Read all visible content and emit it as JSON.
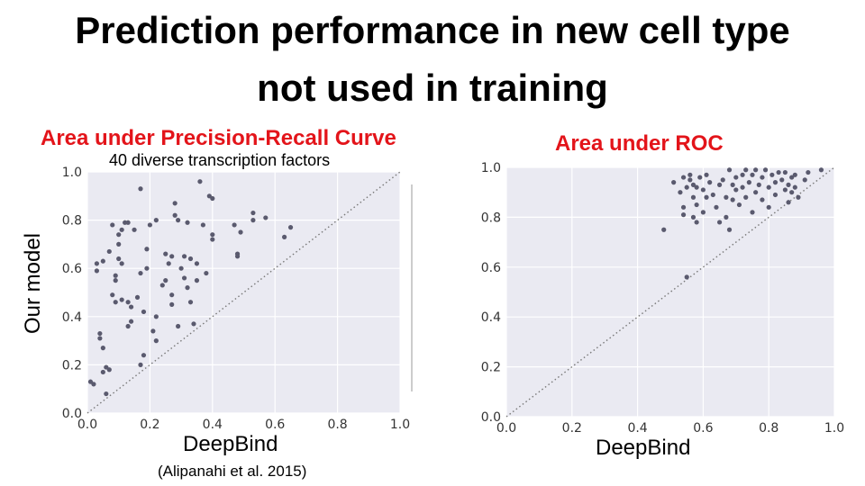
{
  "slide": {
    "title_line1": "Prediction performance in new cell type",
    "title_line2": "not used in training"
  },
  "shared": {
    "ylabel": "Our model"
  },
  "colors": {
    "accent_red": "#e3141a",
    "plot_bg": "#eaeaf2",
    "grid": "#ffffff",
    "point": "#5a5a6e"
  },
  "chart_data": [
    {
      "type": "scatter",
      "title": "Area under Precision-Recall Curve",
      "subtitle": "40 diverse transcription factors",
      "xlabel": "DeepBind",
      "citation": "(Alipanahi et al. 2015)",
      "xlim": [
        0,
        1.0
      ],
      "ylim": [
        0,
        1.0
      ],
      "xticks": [
        "0.0",
        "0.2",
        "0.4",
        "0.6",
        "0.8",
        "1.0"
      ],
      "yticks": [
        "0.0",
        "0.2",
        "0.4",
        "0.6",
        "0.8",
        "1.0"
      ],
      "grid": true,
      "diagonal": true,
      "points": [
        [
          0.01,
          0.13
        ],
        [
          0.02,
          0.12
        ],
        [
          0.03,
          0.59
        ],
        [
          0.03,
          0.62
        ],
        [
          0.04,
          0.31
        ],
        [
          0.04,
          0.33
        ],
        [
          0.05,
          0.63
        ],
        [
          0.05,
          0.27
        ],
        [
          0.05,
          0.17
        ],
        [
          0.06,
          0.19
        ],
        [
          0.06,
          0.08
        ],
        [
          0.07,
          0.67
        ],
        [
          0.07,
          0.18
        ],
        [
          0.08,
          0.49
        ],
        [
          0.08,
          0.78
        ],
        [
          0.09,
          0.57
        ],
        [
          0.09,
          0.55
        ],
        [
          0.09,
          0.46
        ],
        [
          0.1,
          0.7
        ],
        [
          0.1,
          0.64
        ],
        [
          0.1,
          0.74
        ],
        [
          0.11,
          0.62
        ],
        [
          0.11,
          0.47
        ],
        [
          0.11,
          0.76
        ],
        [
          0.12,
          0.79
        ],
        [
          0.13,
          0.36
        ],
        [
          0.13,
          0.79
        ],
        [
          0.13,
          0.46
        ],
        [
          0.14,
          0.44
        ],
        [
          0.14,
          0.38
        ],
        [
          0.15,
          0.76
        ],
        [
          0.16,
          0.48
        ],
        [
          0.17,
          0.2
        ],
        [
          0.17,
          0.93
        ],
        [
          0.17,
          0.58
        ],
        [
          0.18,
          0.24
        ],
        [
          0.18,
          0.42
        ],
        [
          0.19,
          0.68
        ],
        [
          0.19,
          0.6
        ],
        [
          0.2,
          0.78
        ],
        [
          0.21,
          0.34
        ],
        [
          0.22,
          0.8
        ],
        [
          0.22,
          0.4
        ],
        [
          0.22,
          0.3
        ],
        [
          0.24,
          0.53
        ],
        [
          0.25,
          0.55
        ],
        [
          0.25,
          0.66
        ],
        [
          0.26,
          0.62
        ],
        [
          0.27,
          0.65
        ],
        [
          0.27,
          0.49
        ],
        [
          0.27,
          0.45
        ],
        [
          0.28,
          0.87
        ],
        [
          0.28,
          0.82
        ],
        [
          0.29,
          0.36
        ],
        [
          0.29,
          0.8
        ],
        [
          0.3,
          0.6
        ],
        [
          0.31,
          0.65
        ],
        [
          0.31,
          0.56
        ],
        [
          0.32,
          0.79
        ],
        [
          0.32,
          0.52
        ],
        [
          0.33,
          0.64
        ],
        [
          0.33,
          0.46
        ],
        [
          0.34,
          0.37
        ],
        [
          0.35,
          0.55
        ],
        [
          0.35,
          0.62
        ],
        [
          0.36,
          0.96
        ],
        [
          0.37,
          0.78
        ],
        [
          0.38,
          0.58
        ],
        [
          0.39,
          0.9
        ],
        [
          0.4,
          0.72
        ],
        [
          0.4,
          0.89
        ],
        [
          0.4,
          0.74
        ],
        [
          0.47,
          0.78
        ],
        [
          0.48,
          0.65
        ],
        [
          0.48,
          0.66
        ],
        [
          0.49,
          0.75
        ],
        [
          0.53,
          0.8
        ],
        [
          0.53,
          0.83
        ],
        [
          0.57,
          0.81
        ],
        [
          0.63,
          0.73
        ],
        [
          0.65,
          0.77
        ]
      ]
    },
    {
      "type": "scatter",
      "title": "Area under ROC",
      "xlabel": "DeepBind",
      "xlim": [
        0,
        1.0
      ],
      "ylim": [
        0,
        1.0
      ],
      "xticks": [
        "0.0",
        "0.2",
        "0.4",
        "0.6",
        "0.8",
        "1.0"
      ],
      "yticks": [
        "0.0",
        "0.2",
        "0.4",
        "0.6",
        "0.8",
        "1.0"
      ],
      "grid": true,
      "diagonal": true,
      "points": [
        [
          0.48,
          0.75
        ],
        [
          0.51,
          0.94
        ],
        [
          0.53,
          0.9
        ],
        [
          0.54,
          0.96
        ],
        [
          0.54,
          0.81
        ],
        [
          0.54,
          0.84
        ],
        [
          0.55,
          0.56
        ],
        [
          0.55,
          0.92
        ],
        [
          0.56,
          0.95
        ],
        [
          0.56,
          0.97
        ],
        [
          0.57,
          0.8
        ],
        [
          0.57,
          0.88
        ],
        [
          0.57,
          0.93
        ],
        [
          0.58,
          0.85
        ],
        [
          0.58,
          0.92
        ],
        [
          0.58,
          0.78
        ],
        [
          0.59,
          0.96
        ],
        [
          0.6,
          0.91
        ],
        [
          0.6,
          0.82
        ],
        [
          0.61,
          0.88
        ],
        [
          0.61,
          0.97
        ],
        [
          0.62,
          0.94
        ],
        [
          0.63,
          0.89
        ],
        [
          0.64,
          0.84
        ],
        [
          0.65,
          0.93
        ],
        [
          0.65,
          0.78
        ],
        [
          0.66,
          0.95
        ],
        [
          0.67,
          0.88
        ],
        [
          0.67,
          0.8
        ],
        [
          0.68,
          0.75
        ],
        [
          0.68,
          0.99
        ],
        [
          0.69,
          0.93
        ],
        [
          0.69,
          0.87
        ],
        [
          0.7,
          0.96
        ],
        [
          0.7,
          0.91
        ],
        [
          0.71,
          0.85
        ],
        [
          0.72,
          0.97
        ],
        [
          0.72,
          0.92
        ],
        [
          0.73,
          0.99
        ],
        [
          0.73,
          0.88
        ],
        [
          0.74,
          0.94
        ],
        [
          0.75,
          0.97
        ],
        [
          0.75,
          0.82
        ],
        [
          0.76,
          0.9
        ],
        [
          0.76,
          0.99
        ],
        [
          0.77,
          0.93
        ],
        [
          0.78,
          0.87
        ],
        [
          0.78,
          0.96
        ],
        [
          0.79,
          0.99
        ],
        [
          0.8,
          0.92
        ],
        [
          0.8,
          0.84
        ],
        [
          0.81,
          0.97
        ],
        [
          0.82,
          0.94
        ],
        [
          0.82,
          0.89
        ],
        [
          0.83,
          0.98
        ],
        [
          0.84,
          0.95
        ],
        [
          0.85,
          0.91
        ],
        [
          0.85,
          0.98
        ],
        [
          0.86,
          0.86
        ],
        [
          0.86,
          0.93
        ],
        [
          0.87,
          0.96
        ],
        [
          0.87,
          0.9
        ],
        [
          0.88,
          0.92
        ],
        [
          0.88,
          0.97
        ],
        [
          0.89,
          0.88
        ],
        [
          0.91,
          0.95
        ],
        [
          0.92,
          0.98
        ],
        [
          0.96,
          0.99
        ]
      ]
    }
  ]
}
